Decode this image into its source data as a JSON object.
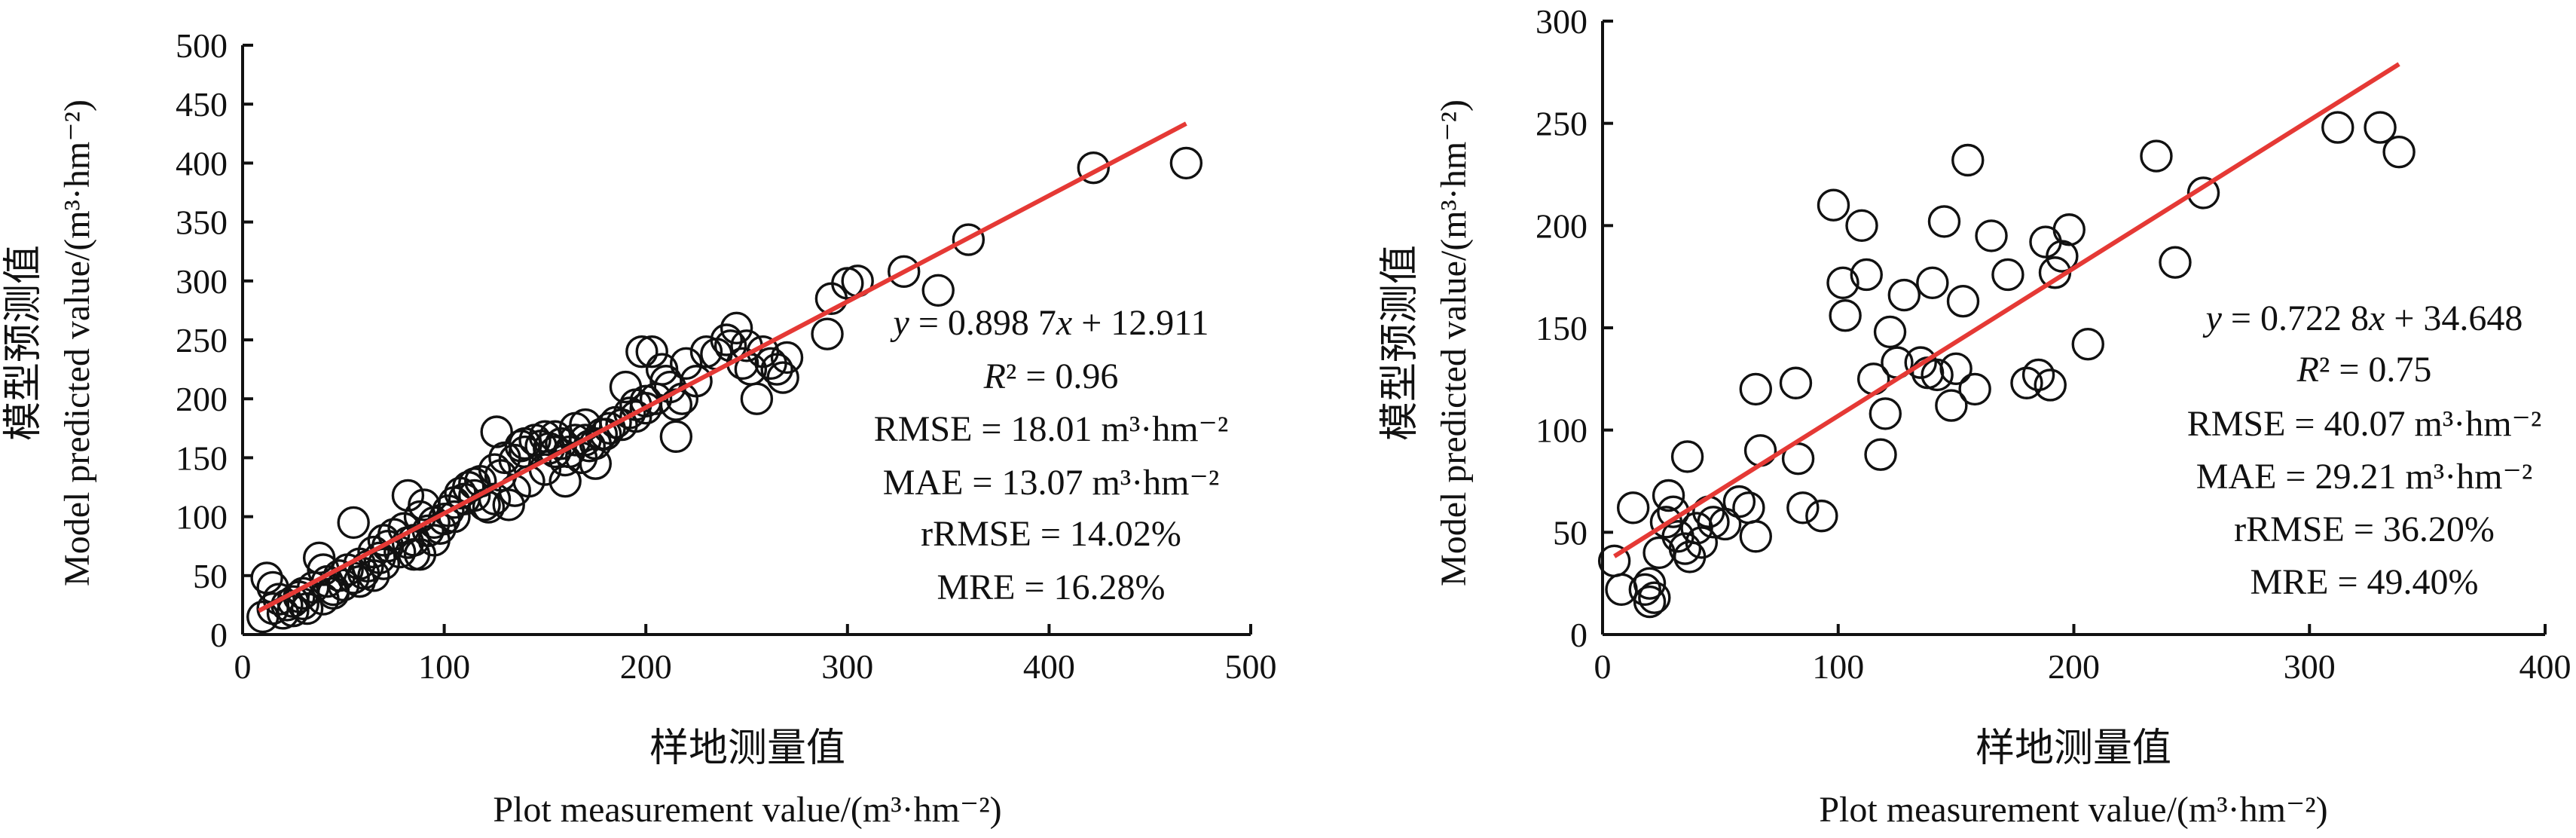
{
  "colors": {
    "fit_line": "#e53935",
    "markers": "#111111",
    "axes": "#111111"
  },
  "chart_data": [
    {
      "type": "scatter",
      "xlim": [
        0,
        500
      ],
      "ylim": [
        0,
        500
      ],
      "xticks": [
        0,
        100,
        200,
        300,
        400,
        500
      ],
      "yticks": [
        0,
        50,
        100,
        150,
        200,
        250,
        300,
        350,
        400,
        450,
        500
      ],
      "xlabel_cn": "样地测量值",
      "xlabel_en": "Plot measurement value/(m³·hm⁻²)",
      "ylabel_cn": "模型预测值",
      "ylabel_en": "Model predicted value/(m³·hm⁻²)",
      "equation": "y = 0.898 7x + 12.911",
      "r2": "R² = 0.96",
      "rmse": "RMSE = 18.01 m³·hm⁻²",
      "mae": "MAE = 13.07 m³·hm⁻²",
      "rrmse": "rRMSE = 14.02%",
      "mre": "MRE = 16.28%",
      "fit": {
        "slope": 0.8987,
        "intercept": 12.911,
        "x_range": [
          8,
          468
        ]
      },
      "points": [
        [
          12,
          48
        ],
        [
          10,
          15
        ],
        [
          15,
          22
        ],
        [
          18,
          30
        ],
        [
          20,
          18
        ],
        [
          22,
          25
        ],
        [
          25,
          28
        ],
        [
          28,
          32
        ],
        [
          30,
          35
        ],
        [
          32,
          22
        ],
        [
          35,
          40
        ],
        [
          38,
          65
        ],
        [
          40,
          30
        ],
        [
          42,
          45
        ],
        [
          45,
          38
        ],
        [
          48,
          50
        ],
        [
          50,
          42
        ],
        [
          52,
          55
        ],
        [
          55,
          95
        ],
        [
          55,
          48
        ],
        [
          58,
          60
        ],
        [
          60,
          52
        ],
        [
          62,
          58
        ],
        [
          65,
          50
        ],
        [
          65,
          70
        ],
        [
          68,
          65
        ],
        [
          70,
          60
        ],
        [
          72,
          75
        ],
        [
          75,
          85
        ],
        [
          78,
          70
        ],
        [
          80,
          90
        ],
        [
          82,
          78
        ],
        [
          82,
          118
        ],
        [
          85,
          80
        ],
        [
          88,
          100
        ],
        [
          88,
          68
        ],
        [
          90,
          110
        ],
        [
          92,
          88
        ],
        [
          95,
          95
        ],
        [
          98,
          90
        ],
        [
          100,
          98
        ],
        [
          102,
          105
        ],
        [
          105,
          112
        ],
        [
          108,
          120
        ],
        [
          110,
          115
        ],
        [
          112,
          125
        ],
        [
          115,
          118
        ],
        [
          118,
          130
        ],
        [
          120,
          110
        ],
        [
          122,
          108
        ],
        [
          125,
          140
        ],
        [
          126,
          172
        ],
        [
          128,
          135
        ],
        [
          130,
          150
        ],
        [
          132,
          110
        ],
        [
          135,
          148
        ],
        [
          138,
          160
        ],
        [
          140,
          155
        ],
        [
          142,
          130
        ],
        [
          145,
          165
        ],
        [
          148,
          160
        ],
        [
          150,
          140
        ],
        [
          152,
          158
        ],
        [
          155,
          168
        ],
        [
          158,
          162
        ],
        [
          160,
          130
        ],
        [
          162,
          155
        ],
        [
          165,
          175
        ],
        [
          168,
          150
        ],
        [
          170,
          178
        ],
        [
          172,
          160
        ],
        [
          175,
          145
        ],
        [
          178,
          170
        ],
        [
          180,
          170
        ],
        [
          182,
          175
        ],
        [
          185,
          180
        ],
        [
          188,
          178
        ],
        [
          190,
          210
        ],
        [
          192,
          188
        ],
        [
          195,
          195
        ],
        [
          198,
          240
        ],
        [
          200,
          198
        ],
        [
          203,
          240
        ],
        [
          205,
          200
        ],
        [
          208,
          225
        ],
        [
          210,
          215
        ],
        [
          212,
          210
        ],
        [
          215,
          168
        ],
        [
          218,
          200
        ],
        [
          220,
          230
        ],
        [
          225,
          215
        ],
        [
          230,
          240
        ],
        [
          235,
          238
        ],
        [
          240,
          250
        ],
        [
          242,
          245
        ],
        [
          245,
          260
        ],
        [
          248,
          230
        ],
        [
          250,
          245
        ],
        [
          252,
          225
        ],
        [
          255,
          200
        ],
        [
          258,
          240
        ],
        [
          262,
          230
        ],
        [
          265,
          225
        ],
        [
          268,
          218
        ],
        [
          270,
          235
        ],
        [
          290,
          255
        ],
        [
          292,
          285
        ],
        [
          300,
          298
        ],
        [
          305,
          300
        ],
        [
          328,
          308
        ],
        [
          345,
          292
        ],
        [
          360,
          335
        ],
        [
          422,
          396
        ],
        [
          468,
          400
        ],
        [
          15,
          40
        ],
        [
          25,
          20
        ],
        [
          30,
          26
        ],
        [
          40,
          55
        ],
        [
          45,
          35
        ],
        [
          58,
          45
        ],
        [
          70,
          80
        ],
        [
          85,
          68
        ],
        [
          95,
          80
        ],
        [
          105,
          100
        ],
        [
          115,
          128
        ],
        [
          125,
          115
        ],
        [
          135,
          122
        ],
        [
          140,
          162
        ],
        [
          150,
          168
        ],
        [
          155,
          155
        ],
        [
          160,
          148
        ],
        [
          165,
          165
        ],
        [
          170,
          165
        ],
        [
          175,
          162
        ],
        [
          195,
          185
        ],
        [
          200,
          192
        ],
        [
          215,
          195
        ]
      ]
    },
    {
      "type": "scatter",
      "xlim": [
        0,
        400
      ],
      "ylim": [
        0,
        300
      ],
      "xticks": [
        0,
        100,
        200,
        300,
        400
      ],
      "yticks": [
        0,
        50,
        100,
        150,
        200,
        250,
        300
      ],
      "xlabel_cn": "样地测量值",
      "xlabel_en": "Plot measurement value/(m³·hm⁻²)",
      "ylabel_cn": "模型预测值",
      "ylabel_en": "Model predicted value/(m³·hm⁻²)",
      "equation": "y = 0.722 8x + 34.648",
      "r2": "R² = 0.75",
      "rmse": "RMSE = 40.07 m³·hm⁻²",
      "mae": "MAE = 29.21 m³·hm⁻²",
      "rrmse": "rRMSE = 36.20%",
      "mre": "MRE = 49.40%",
      "fit": {
        "slope": 0.7228,
        "intercept": 34.648,
        "x_range": [
          5,
          338
        ]
      },
      "points": [
        [
          5,
          36
        ],
        [
          8,
          22
        ],
        [
          13,
          62
        ],
        [
          18,
          22
        ],
        [
          20,
          25
        ],
        [
          20,
          16
        ],
        [
          22,
          18
        ],
        [
          24,
          40
        ],
        [
          27,
          55
        ],
        [
          28,
          68
        ],
        [
          30,
          60
        ],
        [
          32,
          48
        ],
        [
          35,
          42
        ],
        [
          36,
          87
        ],
        [
          37,
          38
        ],
        [
          40,
          52
        ],
        [
          42,
          45
        ],
        [
          45,
          60
        ],
        [
          47,
          55
        ],
        [
          52,
          54
        ],
        [
          58,
          65
        ],
        [
          62,
          62
        ],
        [
          65,
          120
        ],
        [
          65,
          48
        ],
        [
          67,
          90
        ],
        [
          82,
          123
        ],
        [
          83,
          86
        ],
        [
          85,
          62
        ],
        [
          93,
          58
        ],
        [
          98,
          210
        ],
        [
          102,
          172
        ],
        [
          103,
          156
        ],
        [
          110,
          200
        ],
        [
          112,
          176
        ],
        [
          115,
          125
        ],
        [
          118,
          88
        ],
        [
          120,
          108
        ],
        [
          122,
          148
        ],
        [
          125,
          133
        ],
        [
          128,
          166
        ],
        [
          135,
          133
        ],
        [
          138,
          128
        ],
        [
          140,
          172
        ],
        [
          142,
          127
        ],
        [
          145,
          202
        ],
        [
          148,
          112
        ],
        [
          150,
          130
        ],
        [
          153,
          163
        ],
        [
          155,
          232
        ],
        [
          158,
          120
        ],
        [
          165,
          195
        ],
        [
          172,
          176
        ],
        [
          180,
          123
        ],
        [
          185,
          127
        ],
        [
          188,
          192
        ],
        [
          190,
          122
        ],
        [
          192,
          177
        ],
        [
          195,
          185
        ],
        [
          198,
          198
        ],
        [
          206,
          142
        ],
        [
          235,
          234
        ],
        [
          243,
          182
        ],
        [
          255,
          216
        ],
        [
          312,
          248
        ],
        [
          330,
          248
        ],
        [
          338,
          236
        ]
      ]
    }
  ]
}
